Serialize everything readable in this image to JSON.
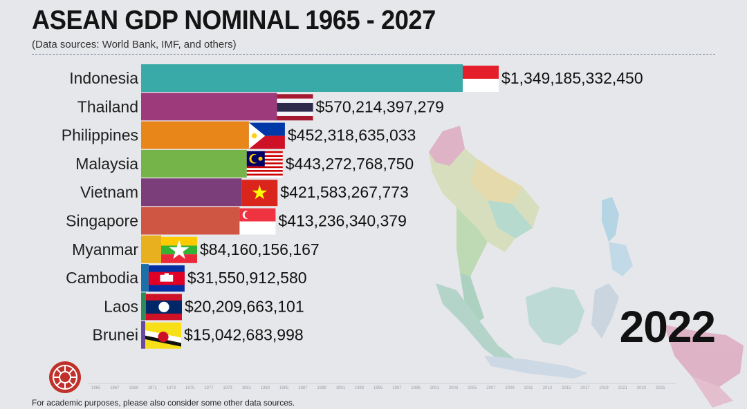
{
  "title": "ASEAN GDP NOMINAL 1965 - 2027",
  "subtitle": "(Data sources: World Bank, IMF, and others)",
  "year": "2022",
  "footer": "For academic purposes, please also consider some other data sources.",
  "chart_data": {
    "type": "bar",
    "orientation": "horizontal",
    "title": "ASEAN GDP NOMINAL 1965 - 2027",
    "categories": [
      "Indonesia",
      "Thailand",
      "Philippines",
      "Malaysia",
      "Vietnam",
      "Singapore",
      "Myanmar",
      "Cambodia",
      "Laos",
      "Brunei"
    ],
    "values": [
      1349185332450,
      570214397279,
      452318635033,
      443272768750,
      421583267773,
      413236340379,
      84160156167,
      31550912580,
      20209663101,
      15042683998
    ],
    "value_labels": [
      "$1,349,185,332,450",
      "$570,214,397,279",
      "$452,318,635,033",
      "$443,272,768,750",
      "$421,583,267,773",
      "$413,236,340,379",
      "$84,160,156,167",
      "$31,550,912,580",
      "$20,209,663,101",
      "$15,042,683,998"
    ],
    "colors": [
      "#3aaaa8",
      "#9c3a7c",
      "#e9861a",
      "#74b449",
      "#7b3e7a",
      "#cf5643",
      "#e8b01e",
      "#1d6fa8",
      "#2e8b57",
      "#6a4aa0"
    ],
    "flags": [
      "indonesia-flag",
      "thailand-flag",
      "philippines-flag",
      "malaysia-flag",
      "vietnam-flag",
      "singapore-flag",
      "myanmar-flag",
      "cambodia-flag",
      "laos-flag",
      "brunei-flag"
    ],
    "xlim": [
      0,
      1349185332450
    ],
    "timeline_ticks": [
      "1965",
      "1967",
      "1969",
      "1971",
      "1973",
      "1975",
      "1977",
      "1979",
      "1981",
      "1983",
      "1985",
      "1987",
      "1989",
      "1991",
      "1993",
      "1995",
      "1997",
      "1999",
      "2001",
      "2003",
      "2005",
      "2007",
      "2009",
      "2011",
      "2013",
      "2015",
      "2017",
      "2019",
      "2021",
      "2023",
      "2025"
    ],
    "grid": false,
    "legend": "none"
  }
}
